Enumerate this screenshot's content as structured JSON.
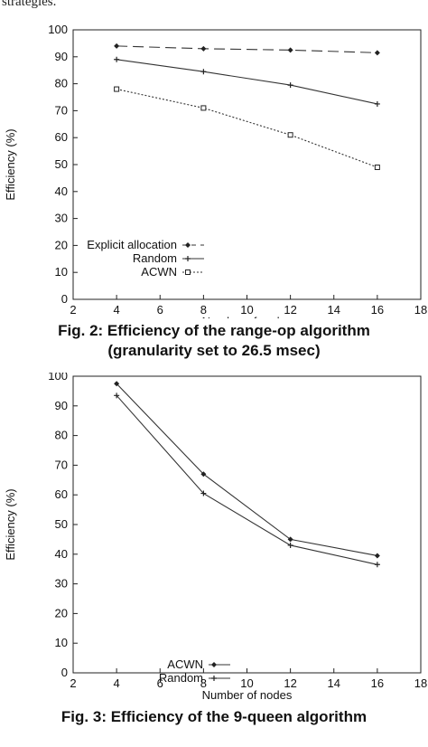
{
  "page": {
    "top_text": "strategies.",
    "caption1_line1": "Fig. 2: Efficiency of the range-op algorithm",
    "caption1_line2": "(granularity set to 26.5 msec)",
    "caption2": "Fig. 3: Efficiency of the 9-queen algorithm"
  },
  "chart_data": [
    {
      "type": "line",
      "title": "",
      "xlabel": "Number of nodes",
      "ylabel": "Efficiency (%)",
      "xlim": [
        2,
        18
      ],
      "ylim": [
        0,
        100
      ],
      "xticks": [
        2,
        4,
        6,
        8,
        10,
        12,
        14,
        16,
        18
      ],
      "yticks": [
        0,
        10,
        20,
        30,
        40,
        50,
        60,
        70,
        80,
        90,
        100
      ],
      "grid": false,
      "legend_position": "lower-left",
      "x": [
        4,
        8,
        12,
        16
      ],
      "series": [
        {
          "name": "Explicit allocation",
          "values": [
            94,
            93,
            92.5,
            91.5
          ],
          "marker": "diamond",
          "dash": "12,6"
        },
        {
          "name": "Random",
          "values": [
            89,
            84.5,
            79.5,
            72.5
          ],
          "marker": "plus",
          "dash": ""
        },
        {
          "name": "ACWN",
          "values": [
            78,
            71,
            61,
            49
          ],
          "marker": "square",
          "dash": "2,2"
        }
      ]
    },
    {
      "type": "line",
      "title": "",
      "xlabel": "Number of nodes",
      "ylabel": "Efficiency (%)",
      "xlim": [
        2,
        18
      ],
      "ylim": [
        0,
        100
      ],
      "xticks": [
        2,
        4,
        6,
        8,
        10,
        12,
        14,
        16,
        18
      ],
      "yticks": [
        0,
        10,
        20,
        30,
        40,
        50,
        60,
        70,
        80,
        90,
        100
      ],
      "grid": false,
      "legend_position": "lower-center",
      "x": [
        4,
        8,
        12,
        16
      ],
      "series": [
        {
          "name": "ACWN",
          "values": [
            97.5,
            67,
            45,
            39.5
          ],
          "marker": "diamond",
          "dash": ""
        },
        {
          "name": "Random",
          "values": [
            93.5,
            60.5,
            43,
            36.5
          ],
          "marker": "plus",
          "dash": ""
        }
      ]
    }
  ]
}
